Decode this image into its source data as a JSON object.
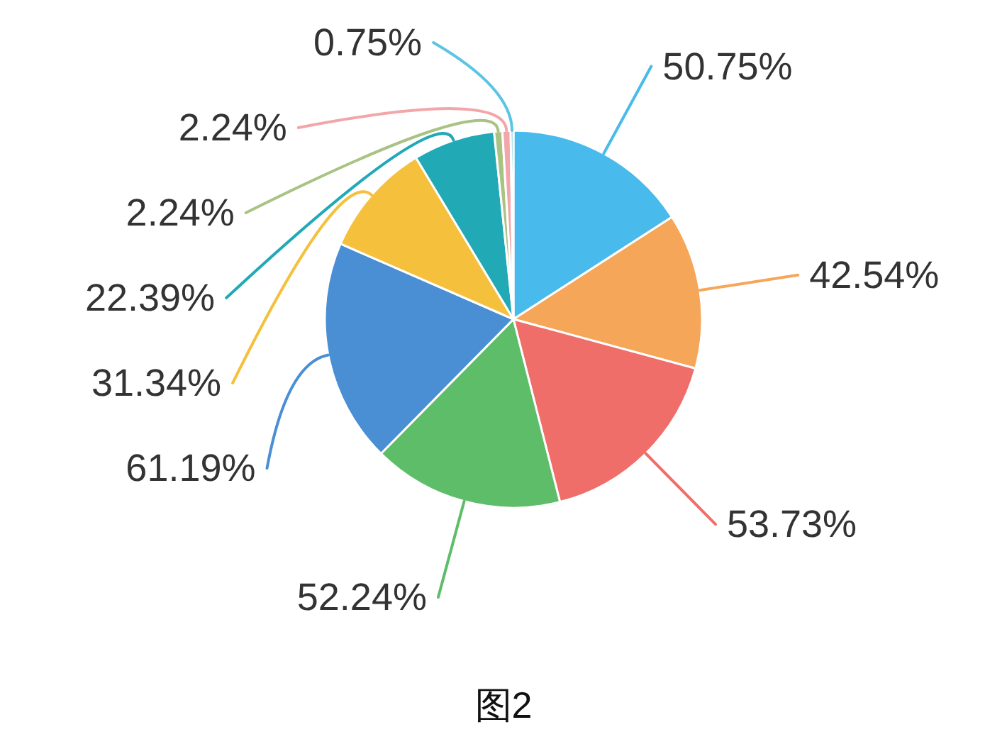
{
  "chart_data": {
    "type": "pie",
    "categories": [
      null,
      null,
      null,
      null,
      null,
      null,
      null,
      null,
      null,
      null
    ],
    "values": [
      50.75,
      42.54,
      53.73,
      52.24,
      61.19,
      31.34,
      22.39,
      2.24,
      2.24,
      0.75
    ],
    "colors": [
      "#48bbec",
      "#f6a659",
      "#ef6e69",
      "#5ebd68",
      "#4a8ed4",
      "#f5c03c",
      "#22a9b6",
      "#a8c383",
      "#f2a6aa",
      "#5cc4e4"
    ],
    "value_labels": [
      "50.75%",
      "42.54%",
      "53.73%",
      "52.24%",
      "61.19%",
      "31.34%",
      "22.39%",
      "2.24%",
      "2.24%",
      "0.75%"
    ],
    "annotations": [
      "图2"
    ]
  }
}
